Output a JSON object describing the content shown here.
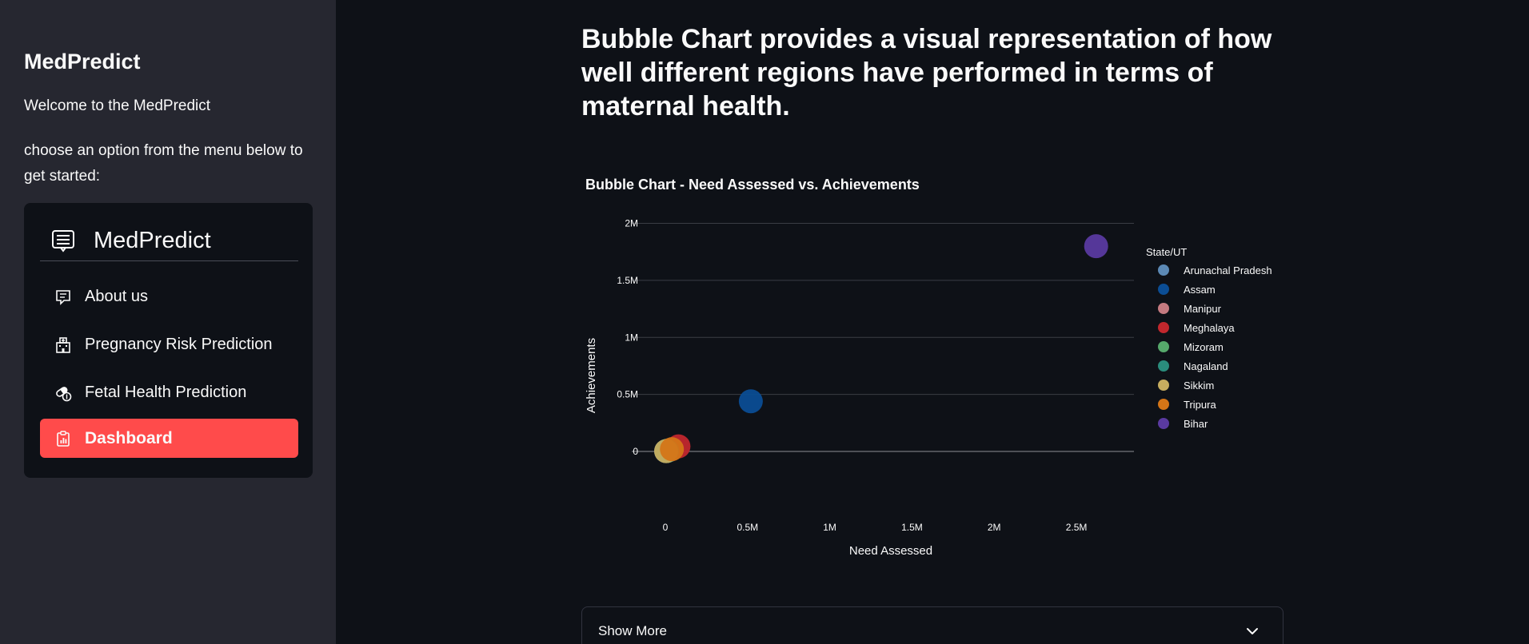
{
  "sidebar": {
    "title": "MedPredict",
    "welcome": "Welcome to the MedPredict",
    "instruction": "choose an option from the menu below to get started:",
    "menu": {
      "header": "MedPredict",
      "header_icon": "list-icon",
      "items": [
        {
          "label": "About us",
          "icon": "chat-icon",
          "active": false
        },
        {
          "label": "Pregnancy Risk Prediction",
          "icon": "hospital-icon",
          "active": false
        },
        {
          "label": "Fetal Health Prediction",
          "icon": "capsule-icon",
          "active": false
        },
        {
          "label": "Dashboard",
          "icon": "clipboard-icon",
          "active": true
        }
      ]
    }
  },
  "main": {
    "heading": "Bubble Chart provides a visual representation of how well different regions have performed in terms of maternal health.",
    "expander_label": "Show More"
  },
  "colors": {
    "accent": "#ff4b4b",
    "background": "#0e1117",
    "sidebar": "#262730"
  },
  "chart_data": {
    "type": "scatter",
    "title": "Bubble Chart - Need Assessed vs. Achievements",
    "xlabel": "Need Assessed",
    "ylabel": "Achievements",
    "xlim": [
      -0.35,
      2.85
    ],
    "ylim": [
      -0.28,
      2.2
    ],
    "x_ticks": [
      {
        "v": 0,
        "label": "0"
      },
      {
        "v": 0.5,
        "label": "0.5M"
      },
      {
        "v": 1,
        "label": "1M"
      },
      {
        "v": 1.5,
        "label": "1.5M"
      },
      {
        "v": 2,
        "label": "2M"
      },
      {
        "v": 2.5,
        "label": "2.5M"
      }
    ],
    "y_ticks": [
      {
        "v": 0,
        "label": "0"
      },
      {
        "v": 0.5,
        "label": "0.5M"
      },
      {
        "v": 1,
        "label": "1M"
      },
      {
        "v": 1.5,
        "label": "1.5M"
      },
      {
        "v": 2,
        "label": "2M"
      }
    ],
    "units": "millions",
    "grid": "horizontal",
    "legend_title": "State/UT",
    "legend_position": "right",
    "series": [
      {
        "name": "Arunachal Pradesh",
        "color": "#5c89b5",
        "x": 0.005,
        "y": 0.003
      },
      {
        "name": "Assam",
        "color": "#0b4d94",
        "x": 0.52,
        "y": 0.44
      },
      {
        "name": "Manipur",
        "color": "#c47a80",
        "x": 0.02,
        "y": 0.01
      },
      {
        "name": "Meghalaya",
        "color": "#c1272d",
        "x": 0.08,
        "y": 0.045
      },
      {
        "name": "Mizoram",
        "color": "#56a86b",
        "x": 0.01,
        "y": 0.006
      },
      {
        "name": "Nagaland",
        "color": "#2a8c7c",
        "x": 0.01,
        "y": 0.004
      },
      {
        "name": "Sikkim",
        "color": "#c7ad5f",
        "x": 0.005,
        "y": 0.003
      },
      {
        "name": "Tripura",
        "color": "#d47517",
        "x": 0.04,
        "y": 0.02
      },
      {
        "name": "Bihar",
        "color": "#5a3aa0",
        "x": 2.62,
        "y": 1.8
      }
    ],
    "bubble_draw_order": [
      2,
      3,
      0,
      4,
      5,
      6,
      7,
      1,
      8
    ]
  }
}
